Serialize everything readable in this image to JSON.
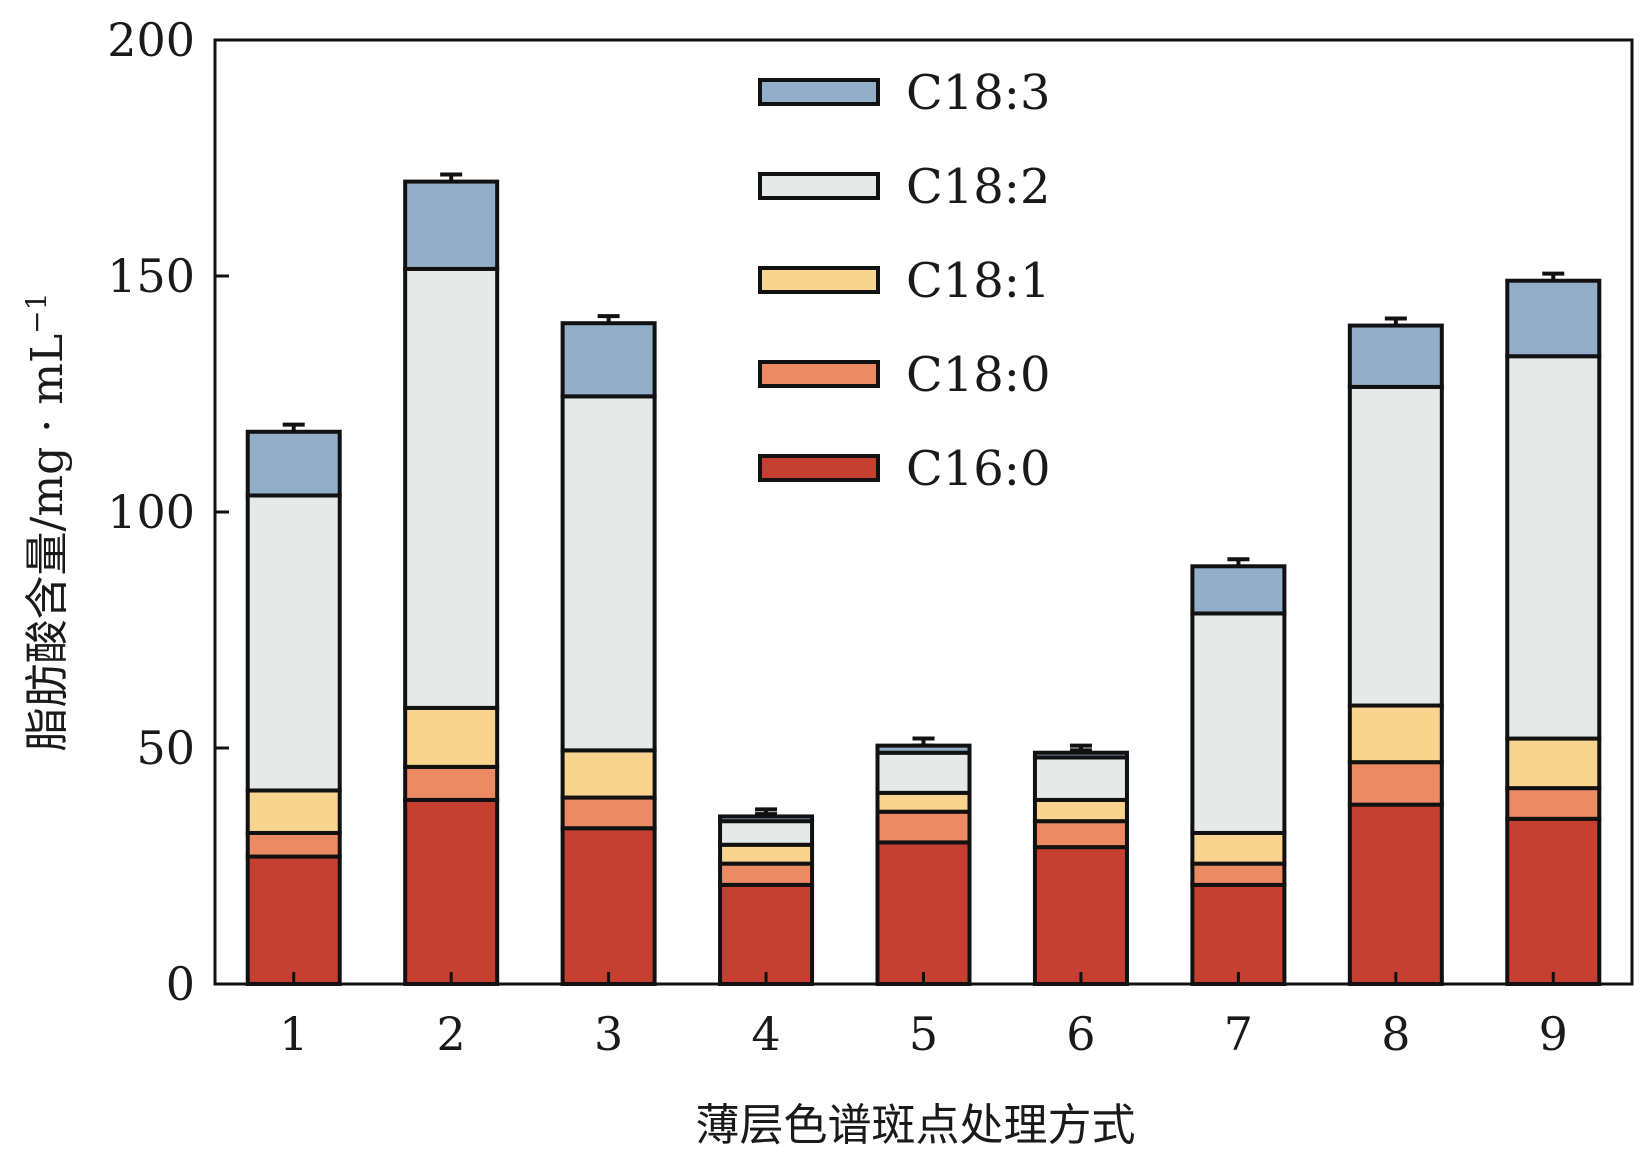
{
  "chart_data": {
    "type": "bar",
    "stacked": true,
    "xlabel": "薄层色谱斑点处理方式",
    "ylabel": "脂肪酸含量/mg · mL",
    "ylabel_superscript": "−1",
    "ylim": [
      0,
      200
    ],
    "yticks": [
      0,
      50,
      100,
      150,
      200
    ],
    "categories": [
      "1",
      "2",
      "3",
      "4",
      "5",
      "6",
      "7",
      "8",
      "9"
    ],
    "legend_position": "top-center",
    "series": [
      {
        "name": "C16:0",
        "color": "#c64032",
        "values": [
          27,
          39,
          33,
          21,
          30,
          29,
          21,
          38,
          35
        ],
        "errors": [
          1.5,
          1.5,
          1.5,
          1.5,
          7,
          6,
          3.5,
          1.5,
          3
        ]
      },
      {
        "name": "C18:0",
        "color": "#ec8a63",
        "values": [
          5,
          7,
          6.5,
          4.5,
          6.5,
          5.5,
          4.5,
          9,
          6.5
        ],
        "errors": [
          1.5,
          1.5,
          1.5,
          4.5,
          1.5,
          1.5,
          1.5,
          1.5,
          1.5
        ]
      },
      {
        "name": "C18:1",
        "color": "#f9d48f",
        "values": [
          9,
          12.5,
          10,
          4,
          4,
          4.5,
          6.5,
          12,
          10.5
        ],
        "errors": [
          1.5,
          1.5,
          1.5,
          3,
          1.5,
          1.5,
          1.5,
          2,
          1.5
        ]
      },
      {
        "name": "C18:2",
        "color": "#e5eae9",
        "values": [
          62.5,
          93,
          75,
          5,
          8.5,
          9,
          46.5,
          67.5,
          81
        ],
        "errors": [
          1.5,
          1.5,
          1.5,
          1.5,
          1.5,
          1.5,
          1.5,
          1.5,
          1.5
        ]
      },
      {
        "name": "C18:3",
        "color": "#92aec8",
        "values": [
          13.5,
          18.5,
          15.5,
          1,
          1.5,
          1,
          10,
          13,
          16
        ],
        "errors": [
          1.5,
          1.5,
          1.5,
          1.5,
          1.5,
          1.5,
          1.5,
          1.5,
          1.5
        ]
      }
    ],
    "legend_order": [
      "C18:3",
      "C18:2",
      "C18:1",
      "C18:0",
      "C16:0"
    ]
  }
}
